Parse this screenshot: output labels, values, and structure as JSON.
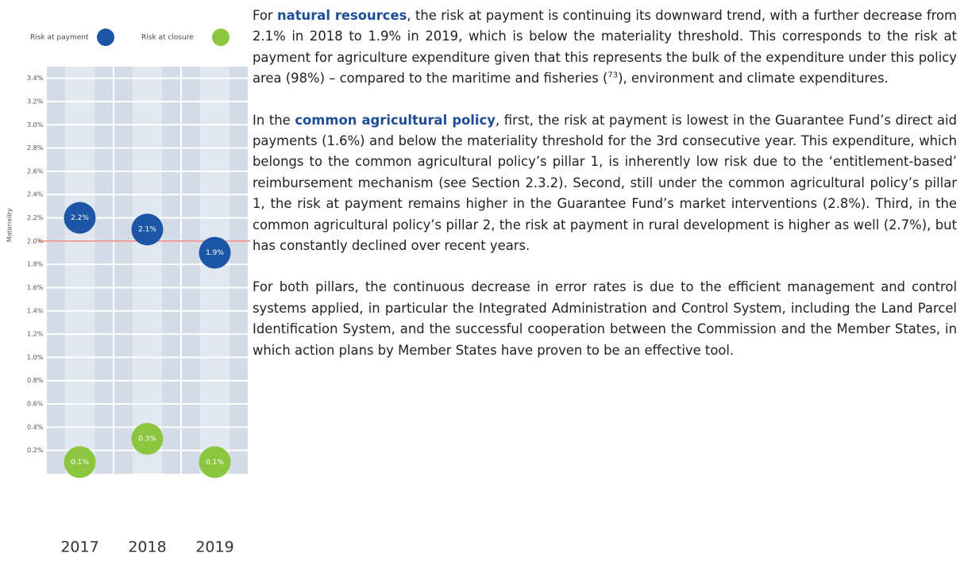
{
  "chart_data": {
    "type": "bubble",
    "categories": [
      "2017",
      "2018",
      "2019"
    ],
    "series": [
      {
        "name": "Risk at payment",
        "color": "#1d56a6",
        "values": [
          2.2,
          2.1,
          1.9
        ],
        "value_labels": [
          "2.2%",
          "2.1%",
          "1.9%"
        ]
      },
      {
        "name": "Risk at closure",
        "color": "#8cc63f",
        "values": [
          0.1,
          0.3,
          0.1
        ],
        "value_labels": [
          "0.1%",
          "0.3%",
          "0.1%"
        ]
      }
    ],
    "ylim": [
      0,
      3.5
    ],
    "yticks": [
      {
        "value": 0.2,
        "label": "0.2%"
      },
      {
        "value": 0.4,
        "label": "0.4%"
      },
      {
        "value": 0.6,
        "label": "0.6%"
      },
      {
        "value": 0.8,
        "label": "0.8%"
      },
      {
        "value": 1.0,
        "label": "1.0%"
      },
      {
        "value": 1.2,
        "label": "1.2%"
      },
      {
        "value": 1.4,
        "label": "1.4%"
      },
      {
        "value": 1.6,
        "label": "1.6%"
      },
      {
        "value": 1.8,
        "label": "1.8%"
      },
      {
        "value": 2.0,
        "label": "2.0%"
      },
      {
        "value": 2.2,
        "label": "2.2%"
      },
      {
        "value": 2.4,
        "label": "2.4%"
      },
      {
        "value": 2.6,
        "label": "2.6%"
      },
      {
        "value": 2.8,
        "label": "2.8%"
      },
      {
        "value": 3.0,
        "label": "3.0%"
      },
      {
        "value": 3.2,
        "label": "3.2%"
      },
      {
        "value": 3.4,
        "label": "3.4%"
      }
    ],
    "grid": true,
    "threshold": {
      "value": 2.0,
      "label": "Materiality",
      "color": "#e8473f"
    }
  },
  "paragraphs": [
    [
      "For ",
      "natural resources",
      ", the risk at payment is continuing its downward trend, with a further decrease from 2.1% in 2018 to 1.9% in 2019, which is below the materiality threshold. This corresponds to the risk at payment for agriculture expenditure given that this represents the bulk of the expenditure under this policy area (98%) – compared to the maritime and fisheries (",
      "73",
      "), environment and climate expenditures."
    ],
    [
      "In the ",
      "common agricultural policy",
      ", first, the risk at payment is lowest in the Guarantee Fund’s direct aid payments (1.6%) and below the materiality threshold for the 3rd consecutive year. This expenditure, which belongs to the common agricultural policy’s pillar 1, is inherently low risk due to the ‘entitlement-based’ reimbursement mechanism (see Section 2.3.2). Second, still under the common agricultural policy’s pillar 1, the risk at payment remains higher in the Guarantee Fund’s market interventions (2.8%). Third, in the common agricultural policy’s pillar 2, the risk at payment in rural development is higher as well (2.7%), but has constantly declined over recent years."
    ],
    [
      "For both pillars, the continuous decrease in error rates is due to the efficient management and control systems applied, in particular the Integrated Administration and Control System, including the Land Parcel Identification System, and the successful cooperation between the Commission and the Member States, in which action plans by Member States have proven to be an effective tool."
    ]
  ]
}
